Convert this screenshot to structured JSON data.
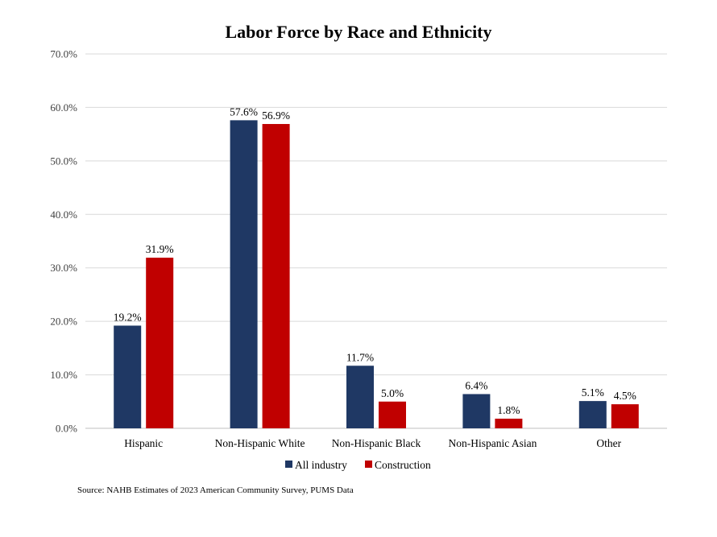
{
  "chart_data": {
    "type": "bar",
    "title": "Labor Force by Race and Ethnicity",
    "xlabel": "",
    "ylabel": "",
    "ylim": [
      0,
      70
    ],
    "yticks": [
      0,
      10,
      20,
      30,
      40,
      50,
      60,
      70
    ],
    "ytick_labels": [
      "0.0%",
      "10.0%",
      "20.0%",
      "30.0%",
      "40.0%",
      "50.0%",
      "60.0%",
      "70.0%"
    ],
    "grid": true,
    "categories": [
      "Hispanic",
      "Non-Hispanic White",
      "Non-Hispanic Black",
      "Non-Hispanic Asian",
      "Other"
    ],
    "series": [
      {
        "name": "All industry",
        "color": "#1f3864",
        "values": [
          19.2,
          57.6,
          11.7,
          6.4,
          5.1
        ],
        "labels": [
          "19.2%",
          "57.6%",
          "11.7%",
          "6.4%",
          "5.1%"
        ]
      },
      {
        "name": "Construction",
        "color": "#c00000",
        "values": [
          31.9,
          56.9,
          5.0,
          1.8,
          4.5
        ],
        "labels": [
          "31.9%",
          "56.9%",
          "5.0%",
          "1.8%",
          "4.5%"
        ]
      }
    ],
    "legend_position": "bottom",
    "source": "Source: NAHB Estimates of 2023 American Community Survey, PUMS Data"
  }
}
